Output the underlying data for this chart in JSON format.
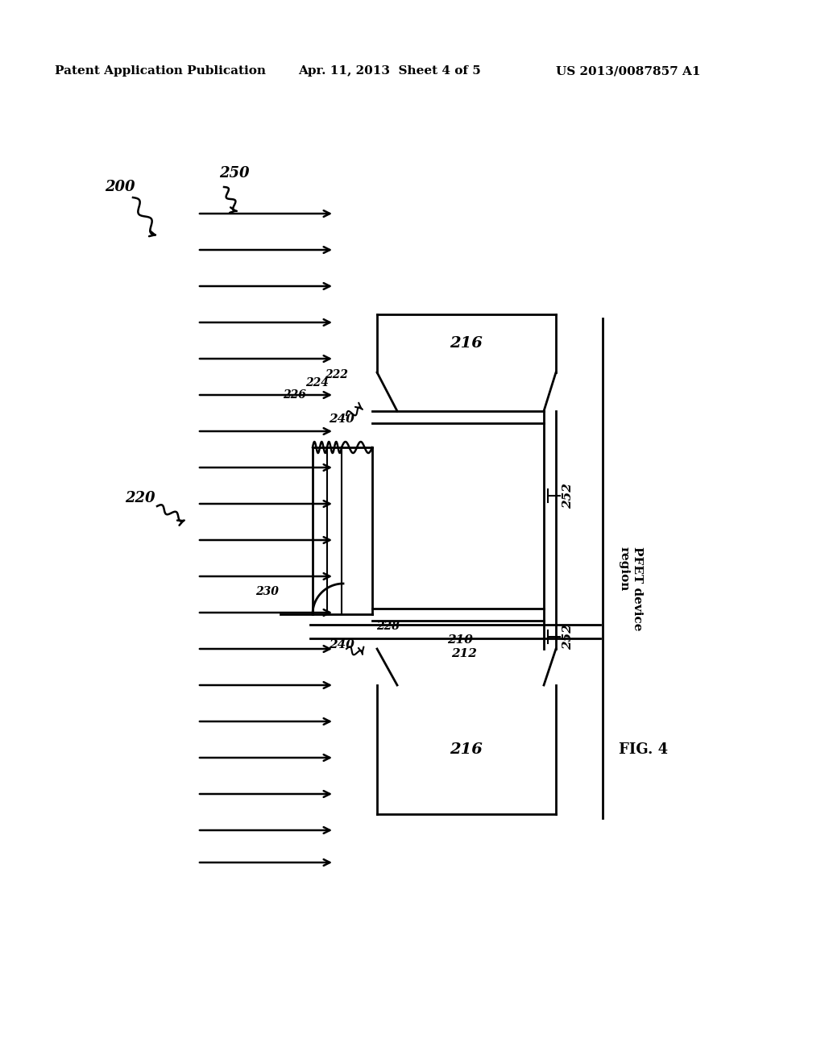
{
  "header_left": "Patent Application Publication",
  "header_mid": "Apr. 11, 2013  Sheet 4 of 5",
  "header_right": "US 2013/0087857 A1",
  "bg_color": "#ffffff",
  "line_color": "#000000",
  "label_200": "200",
  "label_250": "250",
  "label_220": "220",
  "label_210": "210",
  "label_212": "212",
  "label_216": "216",
  "label_222": "222",
  "label_224": "224",
  "label_226": "226",
  "label_228": "228",
  "label_230": "230",
  "label_240": "240",
  "label_252": "252",
  "label_pfet": "PFET device\nregion",
  "label_fig": "FIG. 4"
}
